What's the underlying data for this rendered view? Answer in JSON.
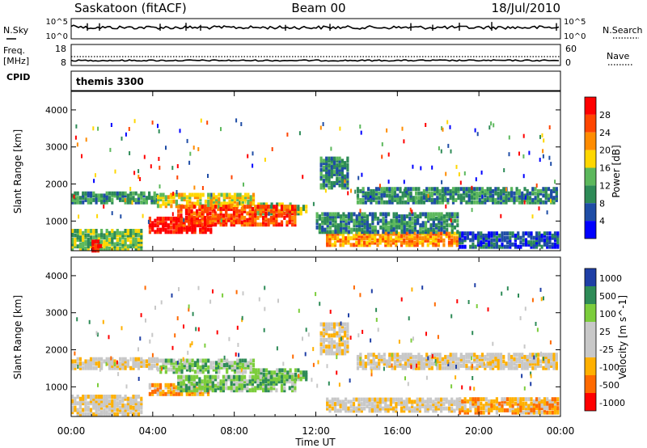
{
  "header": {
    "station": "Saskatoon (fitACF)",
    "beam": "Beam 00",
    "date": "18/Jul/2010"
  },
  "nsky": {
    "label": "N.Sky",
    "top_tick": "10^5",
    "bottom_tick": "10^0",
    "right_label": "N.Search",
    "right_top_tick": "10^5",
    "right_bottom_tick": "10^0"
  },
  "freq": {
    "label_line1": "Freq.",
    "label_line2": "[MHz]",
    "top_tick": "18",
    "bottom_tick": "8",
    "right_label": "Nave",
    "right_top_tick": "60",
    "right_bottom_tick": "0"
  },
  "cpid": {
    "label": "CPID",
    "value": "themis 3300"
  },
  "colors": {
    "power": [
      "#0000ff",
      "#1f4da6",
      "#2e8b57",
      "#5cb85c",
      "#ffd700",
      "#ff8c00",
      "#ff4500",
      "#ff0000"
    ],
    "velocity": [
      "#ff0000",
      "#ff6a00",
      "#ffb000",
      "#c8c8c8",
      "#c8c8c8",
      "#7ccd3c",
      "#2e8b57",
      "#1f3fa6"
    ]
  },
  "chart_data": [
    {
      "type": "heatmap",
      "name": "power",
      "ylabel": "Slant Range [km]",
      "ylim": [
        200,
        4500
      ],
      "yticks": [
        1000,
        2000,
        3000,
        4000
      ],
      "xlim": [
        0,
        24
      ],
      "colorbar": {
        "label": "Power [dB]",
        "ticks": [
          "4",
          "8",
          "12",
          "16",
          "20",
          "24",
          "28"
        ]
      },
      "bands": [
        {
          "t0": 0.0,
          "t1": 4.2,
          "r0": 1500,
          "r1": 1800,
          "level": 2
        },
        {
          "t0": 4.2,
          "t1": 9.0,
          "r0": 1400,
          "r1": 1750,
          "level": 4
        },
        {
          "t0": 9.0,
          "t1": 11.5,
          "r0": 1200,
          "r1": 1500,
          "level": 3
        },
        {
          "t0": 3.8,
          "t1": 6.8,
          "r0": 700,
          "r1": 1100,
          "level": 7
        },
        {
          "t0": 5.2,
          "t1": 11.0,
          "r0": 900,
          "r1": 1400,
          "level": 6
        },
        {
          "t0": 0.0,
          "t1": 3.5,
          "r0": 250,
          "r1": 750,
          "level": 3
        },
        {
          "t0": 1.0,
          "t1": 1.4,
          "r0": 200,
          "r1": 500,
          "level": 7
        },
        {
          "t0": 12.2,
          "t1": 13.6,
          "r0": 1900,
          "r1": 2700,
          "level": 2
        },
        {
          "t0": 12.5,
          "t1": 19.0,
          "r0": 350,
          "r1": 700,
          "level": 5
        },
        {
          "t0": 12.0,
          "t1": 19.0,
          "r0": 700,
          "r1": 1200,
          "level": 2
        },
        {
          "t0": 14.0,
          "t1": 24.0,
          "r0": 1500,
          "r1": 1900,
          "level": 2
        },
        {
          "t0": 19.0,
          "t1": 24.0,
          "r0": 300,
          "r1": 700,
          "level": 1
        }
      ]
    },
    {
      "type": "heatmap",
      "name": "velocity",
      "ylabel": "Slant Range [km]",
      "ylim": [
        200,
        4500
      ],
      "yticks": [
        1000,
        2000,
        3000,
        4000
      ],
      "xlim": [
        0,
        24
      ],
      "xticks": [
        "00:00",
        "04:00",
        "08:00",
        "12:00",
        "16:00",
        "20:00",
        "00:00"
      ],
      "xlabel": "Time UT",
      "colorbar": {
        "label": "Velocity [m s^-1]",
        "ticks": [
          "1000",
          "500",
          "100",
          "25",
          "-25",
          "-100",
          "-500",
          "-1000"
        ]
      },
      "bands": [
        {
          "t0": 0.0,
          "t1": 4.2,
          "r0": 1500,
          "r1": 1800,
          "level": 3
        },
        {
          "t0": 4.2,
          "t1": 9.0,
          "r0": 1400,
          "r1": 1750,
          "level": 5
        },
        {
          "t0": 9.0,
          "t1": 11.5,
          "r0": 1200,
          "r1": 1500,
          "level": 5
        },
        {
          "t0": 3.8,
          "t1": 6.8,
          "r0": 800,
          "r1": 1100,
          "level": 2
        },
        {
          "t0": 5.2,
          "t1": 11.0,
          "r0": 900,
          "r1": 1300,
          "level": 5
        },
        {
          "t0": 0.0,
          "t1": 3.5,
          "r0": 250,
          "r1": 750,
          "level": 3
        },
        {
          "t0": 12.2,
          "t1": 13.6,
          "r0": 1900,
          "r1": 2700,
          "level": 3
        },
        {
          "t0": 12.5,
          "t1": 19.0,
          "r0": 350,
          "r1": 700,
          "level": 3
        },
        {
          "t0": 14.0,
          "t1": 24.0,
          "r0": 1500,
          "r1": 1900,
          "level": 3
        },
        {
          "t0": 19.0,
          "t1": 24.0,
          "r0": 300,
          "r1": 700,
          "level": 2
        }
      ]
    }
  ]
}
